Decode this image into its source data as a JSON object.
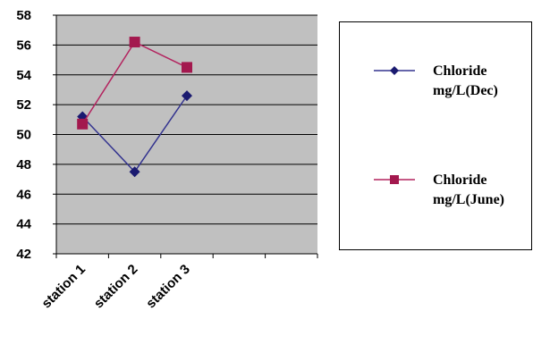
{
  "chart_data": {
    "type": "line",
    "categories": [
      "station 1",
      "station 2",
      "station 3"
    ],
    "series": [
      {
        "name": "Chloride mg/L(Dec)",
        "values": [
          51.2,
          47.5,
          52.6
        ],
        "color": "#33338f",
        "marker": "diamond"
      },
      {
        "name": "Chloride mg/L(June)",
        "values": [
          50.7,
          56.2,
          54.5
        ],
        "color": "#b3245f",
        "marker": "square"
      }
    ],
    "ylim": [
      42,
      58
    ],
    "yticks": [
      42,
      44,
      46,
      48,
      50,
      52,
      54,
      56,
      58
    ],
    "x_slots": 5,
    "grid": true,
    "plot_background": "#c0c0c0",
    "legend_position": "right"
  }
}
